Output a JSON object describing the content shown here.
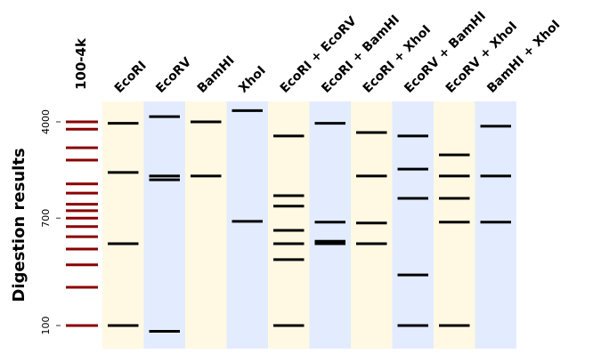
{
  "chart_data": {
    "type": "gel",
    "ylabel": "Digestion results",
    "ladder_label": "100-4k",
    "y_ticks": [
      {
        "value": 4000,
        "label": "4000"
      },
      {
        "value": 700,
        "label": "700"
      },
      {
        "value": 100,
        "label": "100"
      }
    ],
    "ladder_bands": [
      4000,
      3500,
      2500,
      2000,
      1300,
      1100,
      900,
      800,
      700,
      600,
      500,
      400,
      300,
      200,
      100
    ],
    "ladder_color": "#8b0000",
    "lanes": [
      {
        "label": "EcoRI",
        "color": "#fff9e3",
        "bands": [
          3900,
          1600,
          440,
          100
        ]
      },
      {
        "label": "EcoRV",
        "color": "#e3ecff",
        "bands": [
          4400,
          1400,
          1500,
          90
        ]
      },
      {
        "label": "BamHI",
        "color": "#fff9e3",
        "bands": [
          4000,
          1500
        ]
      },
      {
        "label": "XhoI",
        "color": "#e3ecff",
        "bands": [
          4900,
          660
        ]
      },
      {
        "label": "EcoRI + EcoRV",
        "color": "#fff9e3",
        "bands": [
          3100,
          1050,
          870,
          560,
          440,
          330,
          100
        ]
      },
      {
        "label": "EcoRI + BamHI",
        "color": "#e3ecff",
        "bands": [
          3900,
          650,
          460,
          450,
          440
        ]
      },
      {
        "label": "EcoRI + XhoI",
        "color": "#fff9e3",
        "bands": [
          3300,
          1500,
          640,
          440
        ]
      },
      {
        "label": "EcoRV + BamHI",
        "color": "#e3ecff",
        "bands": [
          3100,
          1700,
          1000,
          250,
          100
        ]
      },
      {
        "label": "EcoRV + XhoI",
        "color": "#fff9e3",
        "bands": [
          2200,
          1500,
          1000,
          650,
          100
        ]
      },
      {
        "label": "BamHI + XhoI",
        "color": "#e3ecff",
        "bands": [
          3700,
          1500,
          650
        ]
      }
    ],
    "band_color": "#000000"
  }
}
